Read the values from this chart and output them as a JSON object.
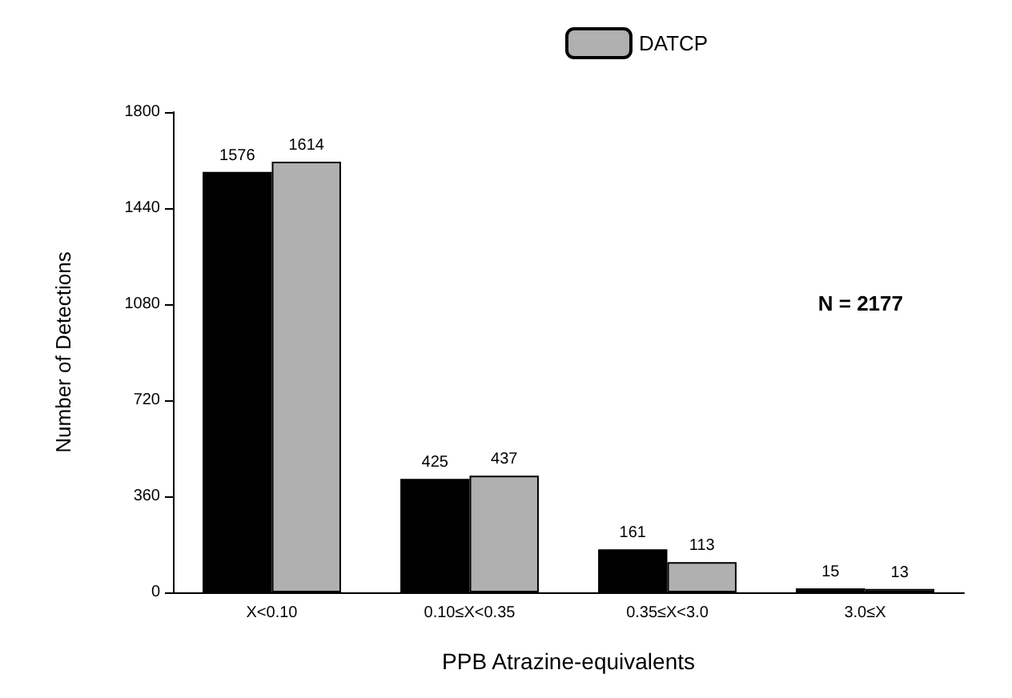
{
  "chart_data": {
    "type": "bar",
    "xlabel": "PPB Atrazine-equivalents",
    "ylabel": "Number of Detections",
    "categories": [
      "X<0.10",
      "0.10≤X<0.35",
      "0.35≤X<3.0",
      "3.0≤X"
    ],
    "series": [
      {
        "color": "#000000",
        "values": [
          1576,
          425,
          161,
          15
        ]
      },
      {
        "name": "DATCP",
        "color": "#b0b0b0",
        "values": [
          1614,
          437,
          113,
          13
        ]
      }
    ],
    "ylim": [
      0,
      1800
    ],
    "yticks": [
      0,
      360,
      720,
      1080,
      1440,
      1800
    ],
    "grid": false,
    "legend": "top",
    "data_labels": true,
    "annotations": [
      "N = 2177"
    ]
  }
}
